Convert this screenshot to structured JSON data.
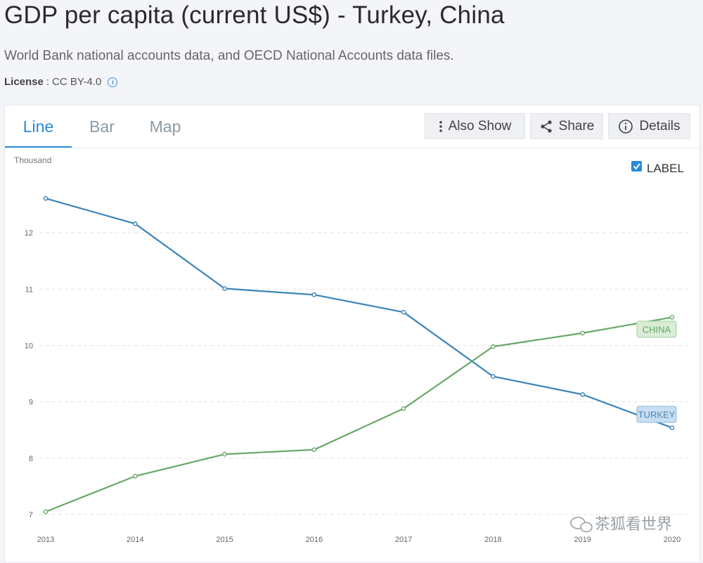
{
  "header": {
    "title": "GDP per capita (current US$) - Turkey, China",
    "source": "World Bank national accounts data, and OECD National Accounts data files.",
    "license_label": "License",
    "license_sep": ":",
    "license_value": "CC BY-4.0"
  },
  "tabs": [
    {
      "label": "Line",
      "active": true
    },
    {
      "label": "Bar",
      "active": false
    },
    {
      "label": "Map",
      "active": false
    }
  ],
  "toolbar": {
    "also_show": "Also Show",
    "share": "Share",
    "details": "Details"
  },
  "label_toggle": {
    "label": "LABEL",
    "checked": true
  },
  "watermark": "茶狐看世界",
  "colors": {
    "turkey": "#3a84b9",
    "china": "#67a867",
    "accent": "#2a8bd8"
  },
  "chart_data": {
    "type": "line",
    "unit_label": "Thousand",
    "x": [
      2013,
      2014,
      2015,
      2016,
      2017,
      2018,
      2019,
      2020
    ],
    "ylim": [
      7,
      13
    ],
    "yticks": [
      7,
      8,
      9,
      10,
      11,
      12
    ],
    "grid": true,
    "series": [
      {
        "name": "TURKEY",
        "values": [
          12.61,
          12.16,
          11.01,
          10.9,
          10.59,
          9.45,
          9.13,
          8.54
        ]
      },
      {
        "name": "CHINA",
        "values": [
          7.05,
          7.68,
          8.07,
          8.15,
          8.88,
          9.98,
          10.22,
          10.5
        ]
      }
    ]
  }
}
